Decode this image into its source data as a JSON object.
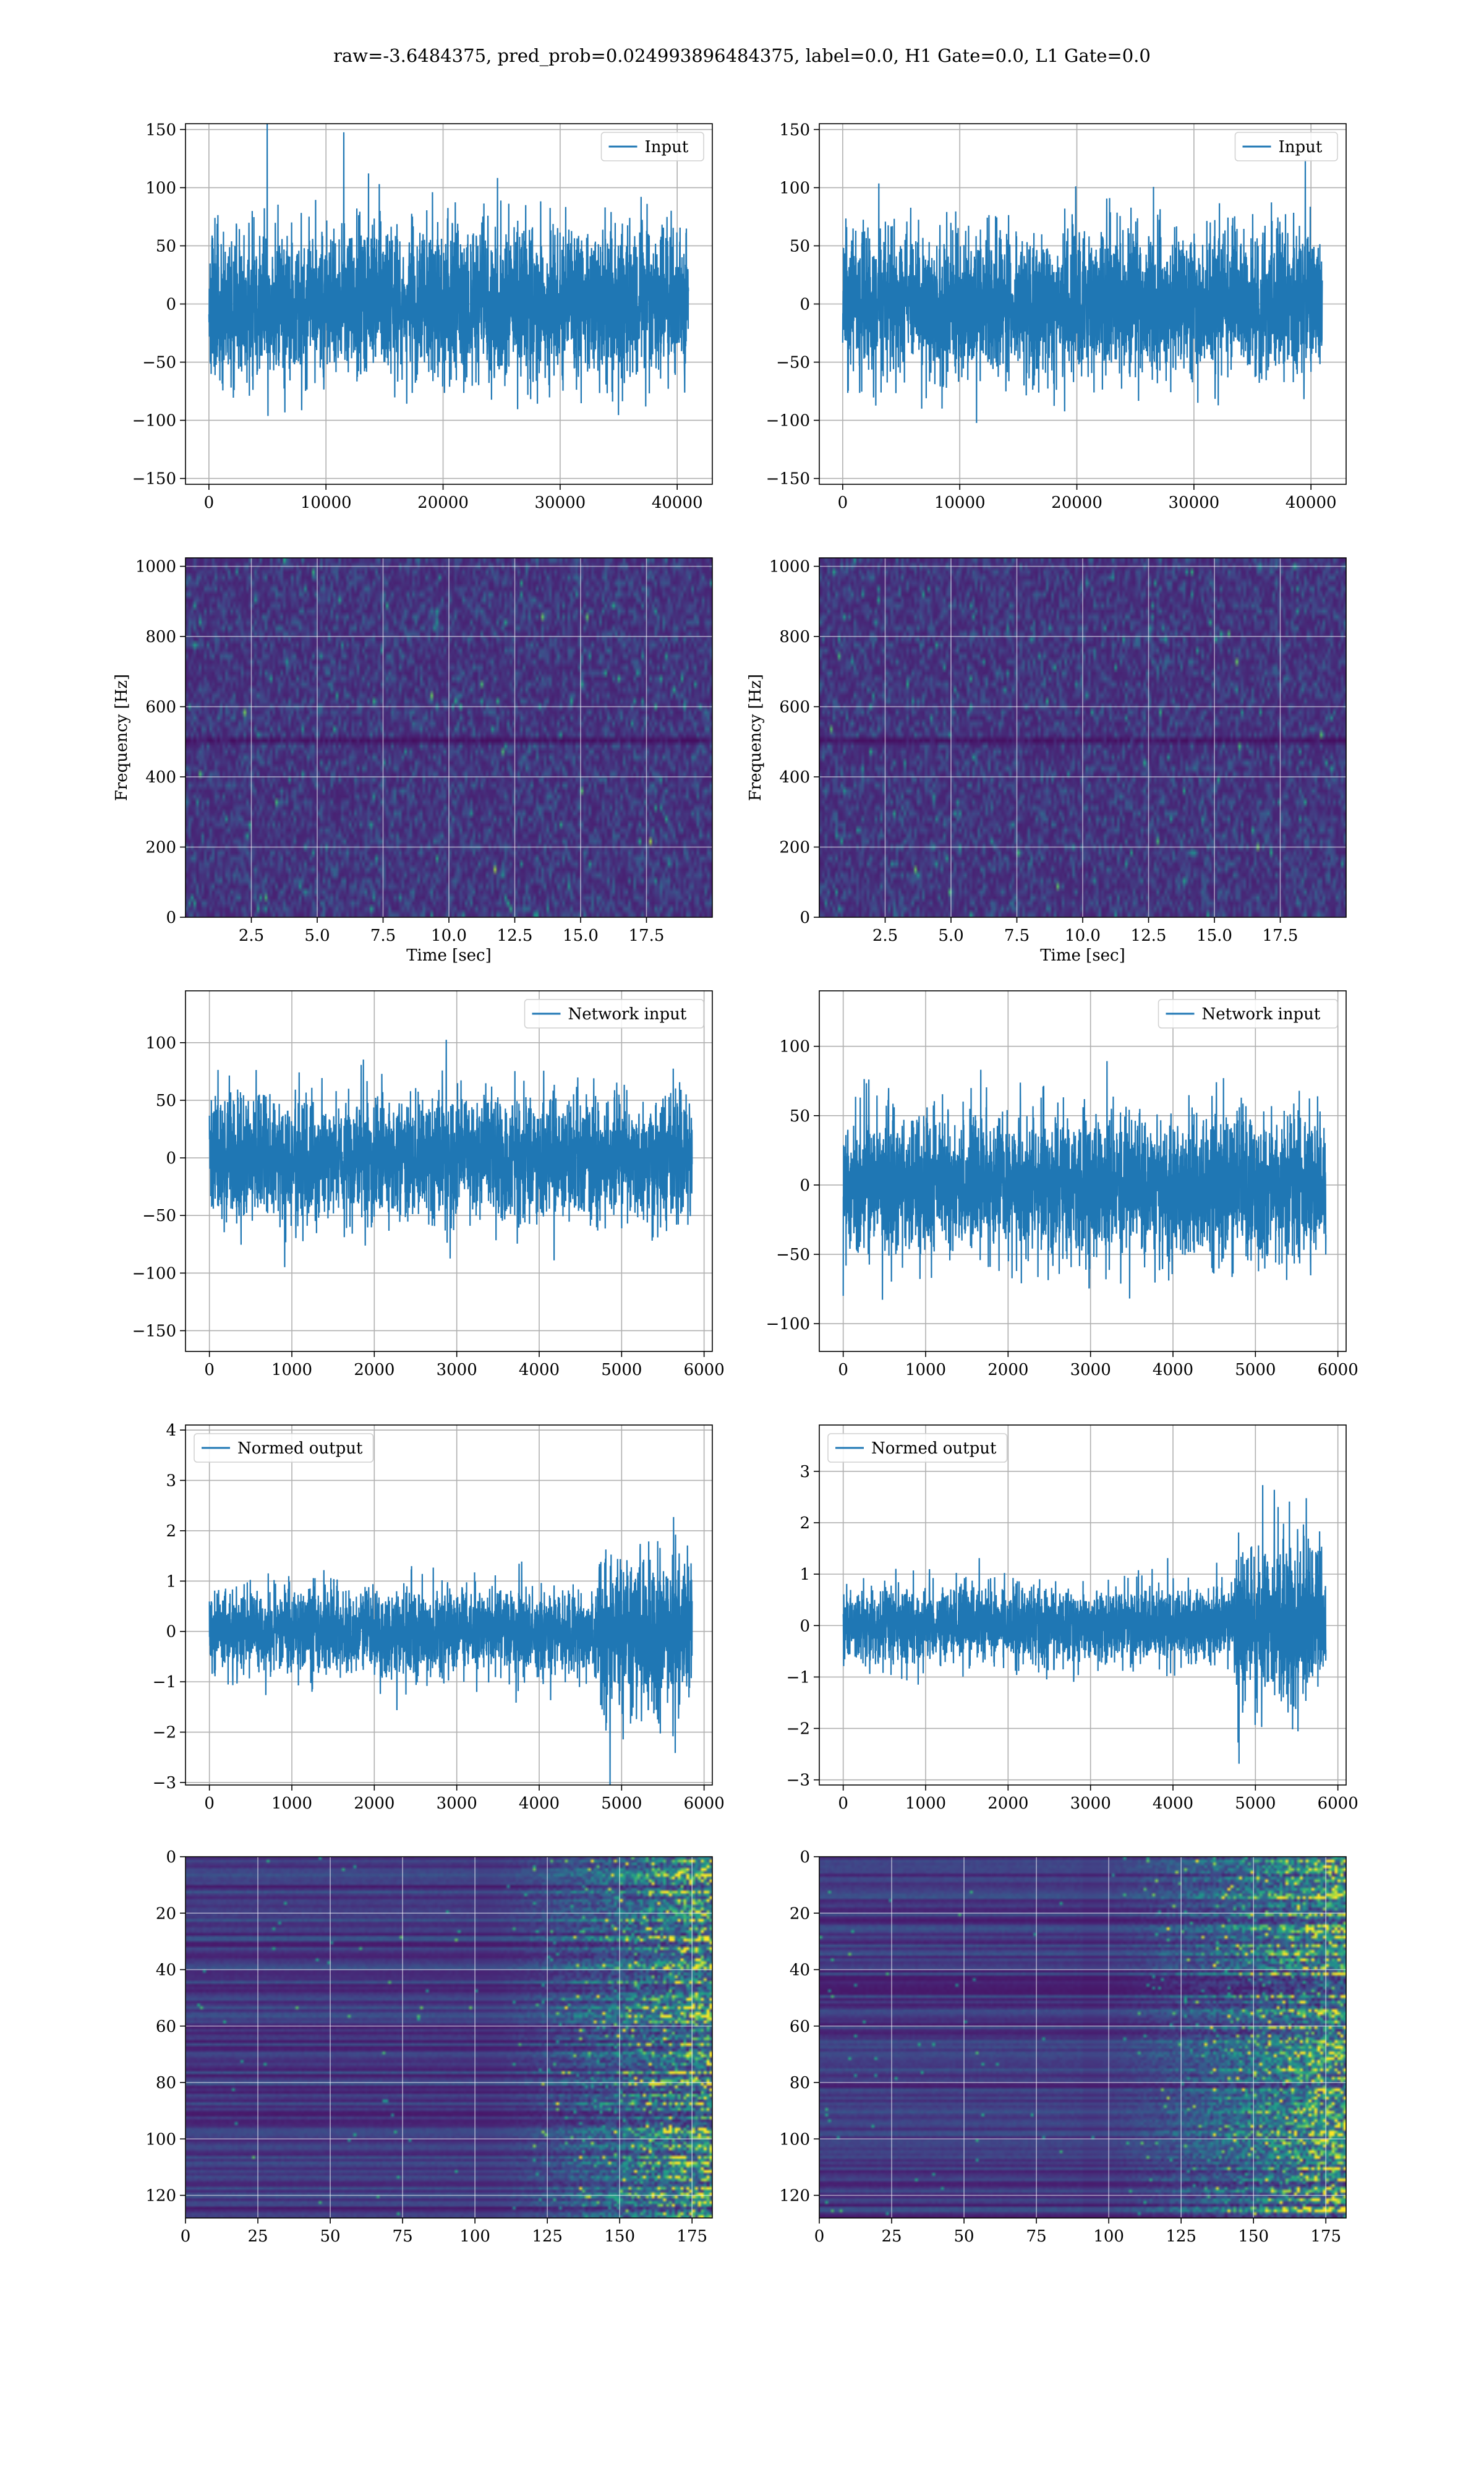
{
  "figure": {
    "title": "raw=-3.6484375, pred_prob=0.024993896484375, label=0.0, H1 Gate=0.0, L1 Gate=0.0"
  },
  "colors": {
    "line": "#1f77b4",
    "grid": "#b0b0b0",
    "viridis_low": "#440154",
    "viridis_mid": "#21918c",
    "viridis_high": "#fde725"
  },
  "chart_data": [
    {
      "id": "input-left",
      "row": 0,
      "col": 0,
      "type": "line",
      "xlim": [
        -2000,
        43000
      ],
      "ylim": [
        -155,
        155
      ],
      "xticks": [
        0,
        10000,
        20000,
        30000,
        40000
      ],
      "yticks": [
        -150,
        -100,
        -50,
        0,
        50,
        100,
        150
      ],
      "legend": "Input",
      "legend_loc": "upper right",
      "x_start": 0,
      "x_end": 40960,
      "amp": 32,
      "seed": 11,
      "envelope": [
        [
          0,
          1
        ],
        [
          1,
          1
        ]
      ]
    },
    {
      "id": "input-right",
      "row": 0,
      "col": 1,
      "type": "line",
      "xlim": [
        -2000,
        43000
      ],
      "ylim": [
        -155,
        155
      ],
      "xticks": [
        0,
        10000,
        20000,
        30000,
        40000
      ],
      "yticks": [
        -150,
        -100,
        -50,
        0,
        50,
        100,
        150
      ],
      "legend": "Input",
      "legend_loc": "upper right",
      "x_start": 0,
      "x_end": 40960,
      "amp": 30,
      "seed": 23,
      "envelope": [
        [
          0,
          1
        ],
        [
          1,
          1
        ]
      ]
    },
    {
      "id": "spectrogram-left",
      "row": 1,
      "col": 0,
      "type": "heatmap",
      "xlim": [
        0,
        20
      ],
      "ylim": [
        0,
        1024
      ],
      "xticks": [
        2.5,
        5.0,
        7.5,
        10.0,
        12.5,
        15.0,
        17.5
      ],
      "xtick_labels": [
        "2.5",
        "5.0",
        "7.5",
        "10.0",
        "12.5",
        "15.0",
        "17.5"
      ],
      "yticks": [
        0,
        200,
        400,
        600,
        800,
        1000
      ],
      "xlabel": "Time [sec]",
      "ylabel": "Frequency [Hz]",
      "grid_rows": 64,
      "grid_cols": 200,
      "seed": 5,
      "notch_at": 0.5
    },
    {
      "id": "spectrogram-right",
      "row": 1,
      "col": 1,
      "type": "heatmap",
      "xlim": [
        0,
        20
      ],
      "ylim": [
        0,
        1024
      ],
      "xticks": [
        2.5,
        5.0,
        7.5,
        10.0,
        12.5,
        15.0,
        17.5
      ],
      "xtick_labels": [
        "2.5",
        "5.0",
        "7.5",
        "10.0",
        "12.5",
        "15.0",
        "17.5"
      ],
      "yticks": [
        0,
        200,
        400,
        600,
        800,
        1000
      ],
      "xlabel": "Time [sec]",
      "ylabel": "Frequency [Hz]",
      "grid_rows": 64,
      "grid_cols": 200,
      "seed": 9,
      "notch_at": 0.5
    },
    {
      "id": "network-input-left",
      "row": 2,
      "col": 0,
      "type": "line",
      "xlim": [
        -290,
        6100
      ],
      "ylim": [
        -168,
        145
      ],
      "xticks": [
        0,
        1000,
        2000,
        3000,
        4000,
        5000,
        6000
      ],
      "yticks": [
        -150,
        -100,
        -50,
        0,
        50,
        100
      ],
      "legend": "Network input",
      "legend_loc": "upper right",
      "x_start": 0,
      "x_end": 5855,
      "amp": 26,
      "seed": 31,
      "envelope": [
        [
          0,
          1
        ],
        [
          1,
          1
        ]
      ]
    },
    {
      "id": "network-input-right",
      "row": 2,
      "col": 1,
      "type": "line",
      "xlim": [
        -290,
        6100
      ],
      "ylim": [
        -120,
        140
      ],
      "xticks": [
        0,
        1000,
        2000,
        3000,
        4000,
        5000,
        6000
      ],
      "yticks": [
        -100,
        -50,
        0,
        50,
        100
      ],
      "legend": "Network input",
      "legend_loc": "upper right",
      "x_start": 0,
      "x_end": 5855,
      "amp": 25,
      "seed": 47,
      "envelope": [
        [
          0,
          1
        ],
        [
          1,
          1
        ]
      ]
    },
    {
      "id": "normed-output-left",
      "row": 3,
      "col": 0,
      "type": "line",
      "xlim": [
        -290,
        6100
      ],
      "ylim": [
        -3.05,
        4.1
      ],
      "xticks": [
        0,
        1000,
        2000,
        3000,
        4000,
        5000,
        6000
      ],
      "yticks": [
        -3,
        -2,
        -1,
        0,
        1,
        2,
        3,
        4
      ],
      "legend": "Normed output",
      "legend_loc": "upper left",
      "x_start": 0,
      "x_end": 5855,
      "amp": 0.42,
      "seed": 53,
      "envelope": [
        [
          0,
          1
        ],
        [
          0.8,
          1
        ],
        [
          0.81,
          2.1
        ],
        [
          0.88,
          1.9
        ],
        [
          1,
          1.7
        ]
      ]
    },
    {
      "id": "normed-output-right",
      "row": 3,
      "col": 1,
      "type": "line",
      "xlim": [
        -290,
        6100
      ],
      "ylim": [
        -3.1,
        3.9
      ],
      "xticks": [
        0,
        1000,
        2000,
        3000,
        4000,
        5000,
        6000
      ],
      "yticks": [
        -3,
        -2,
        -1,
        0,
        1,
        2,
        3
      ],
      "legend": "Normed output",
      "legend_loc": "upper left",
      "x_start": 0,
      "x_end": 5855,
      "amp": 0.36,
      "seed": 61,
      "envelope": [
        [
          0,
          1
        ],
        [
          0.8,
          1
        ],
        [
          0.82,
          2.3
        ],
        [
          1,
          2.0
        ]
      ]
    },
    {
      "id": "feature-map-left",
      "row": 4,
      "col": 0,
      "type": "heatmap",
      "xlim": [
        0,
        182
      ],
      "ylim": [
        128,
        0
      ],
      "xticks": [
        0,
        25,
        50,
        75,
        100,
        125,
        150,
        175
      ],
      "yticks": [
        0,
        20,
        40,
        60,
        80,
        100,
        120
      ],
      "xlabel": "",
      "ylabel": "",
      "grid_rows": 128,
      "grid_cols": 182,
      "seed": 71,
      "mode": "feature",
      "onset": 0.55
    },
    {
      "id": "feature-map-right",
      "row": 4,
      "col": 1,
      "type": "heatmap",
      "xlim": [
        0,
        182
      ],
      "ylim": [
        128,
        0
      ],
      "xticks": [
        0,
        25,
        50,
        75,
        100,
        125,
        150,
        175
      ],
      "yticks": [
        0,
        20,
        40,
        60,
        80,
        100,
        120
      ],
      "xlabel": "",
      "ylabel": "",
      "grid_rows": 128,
      "grid_cols": 182,
      "seed": 83,
      "mode": "feature",
      "onset": 0.5
    }
  ]
}
